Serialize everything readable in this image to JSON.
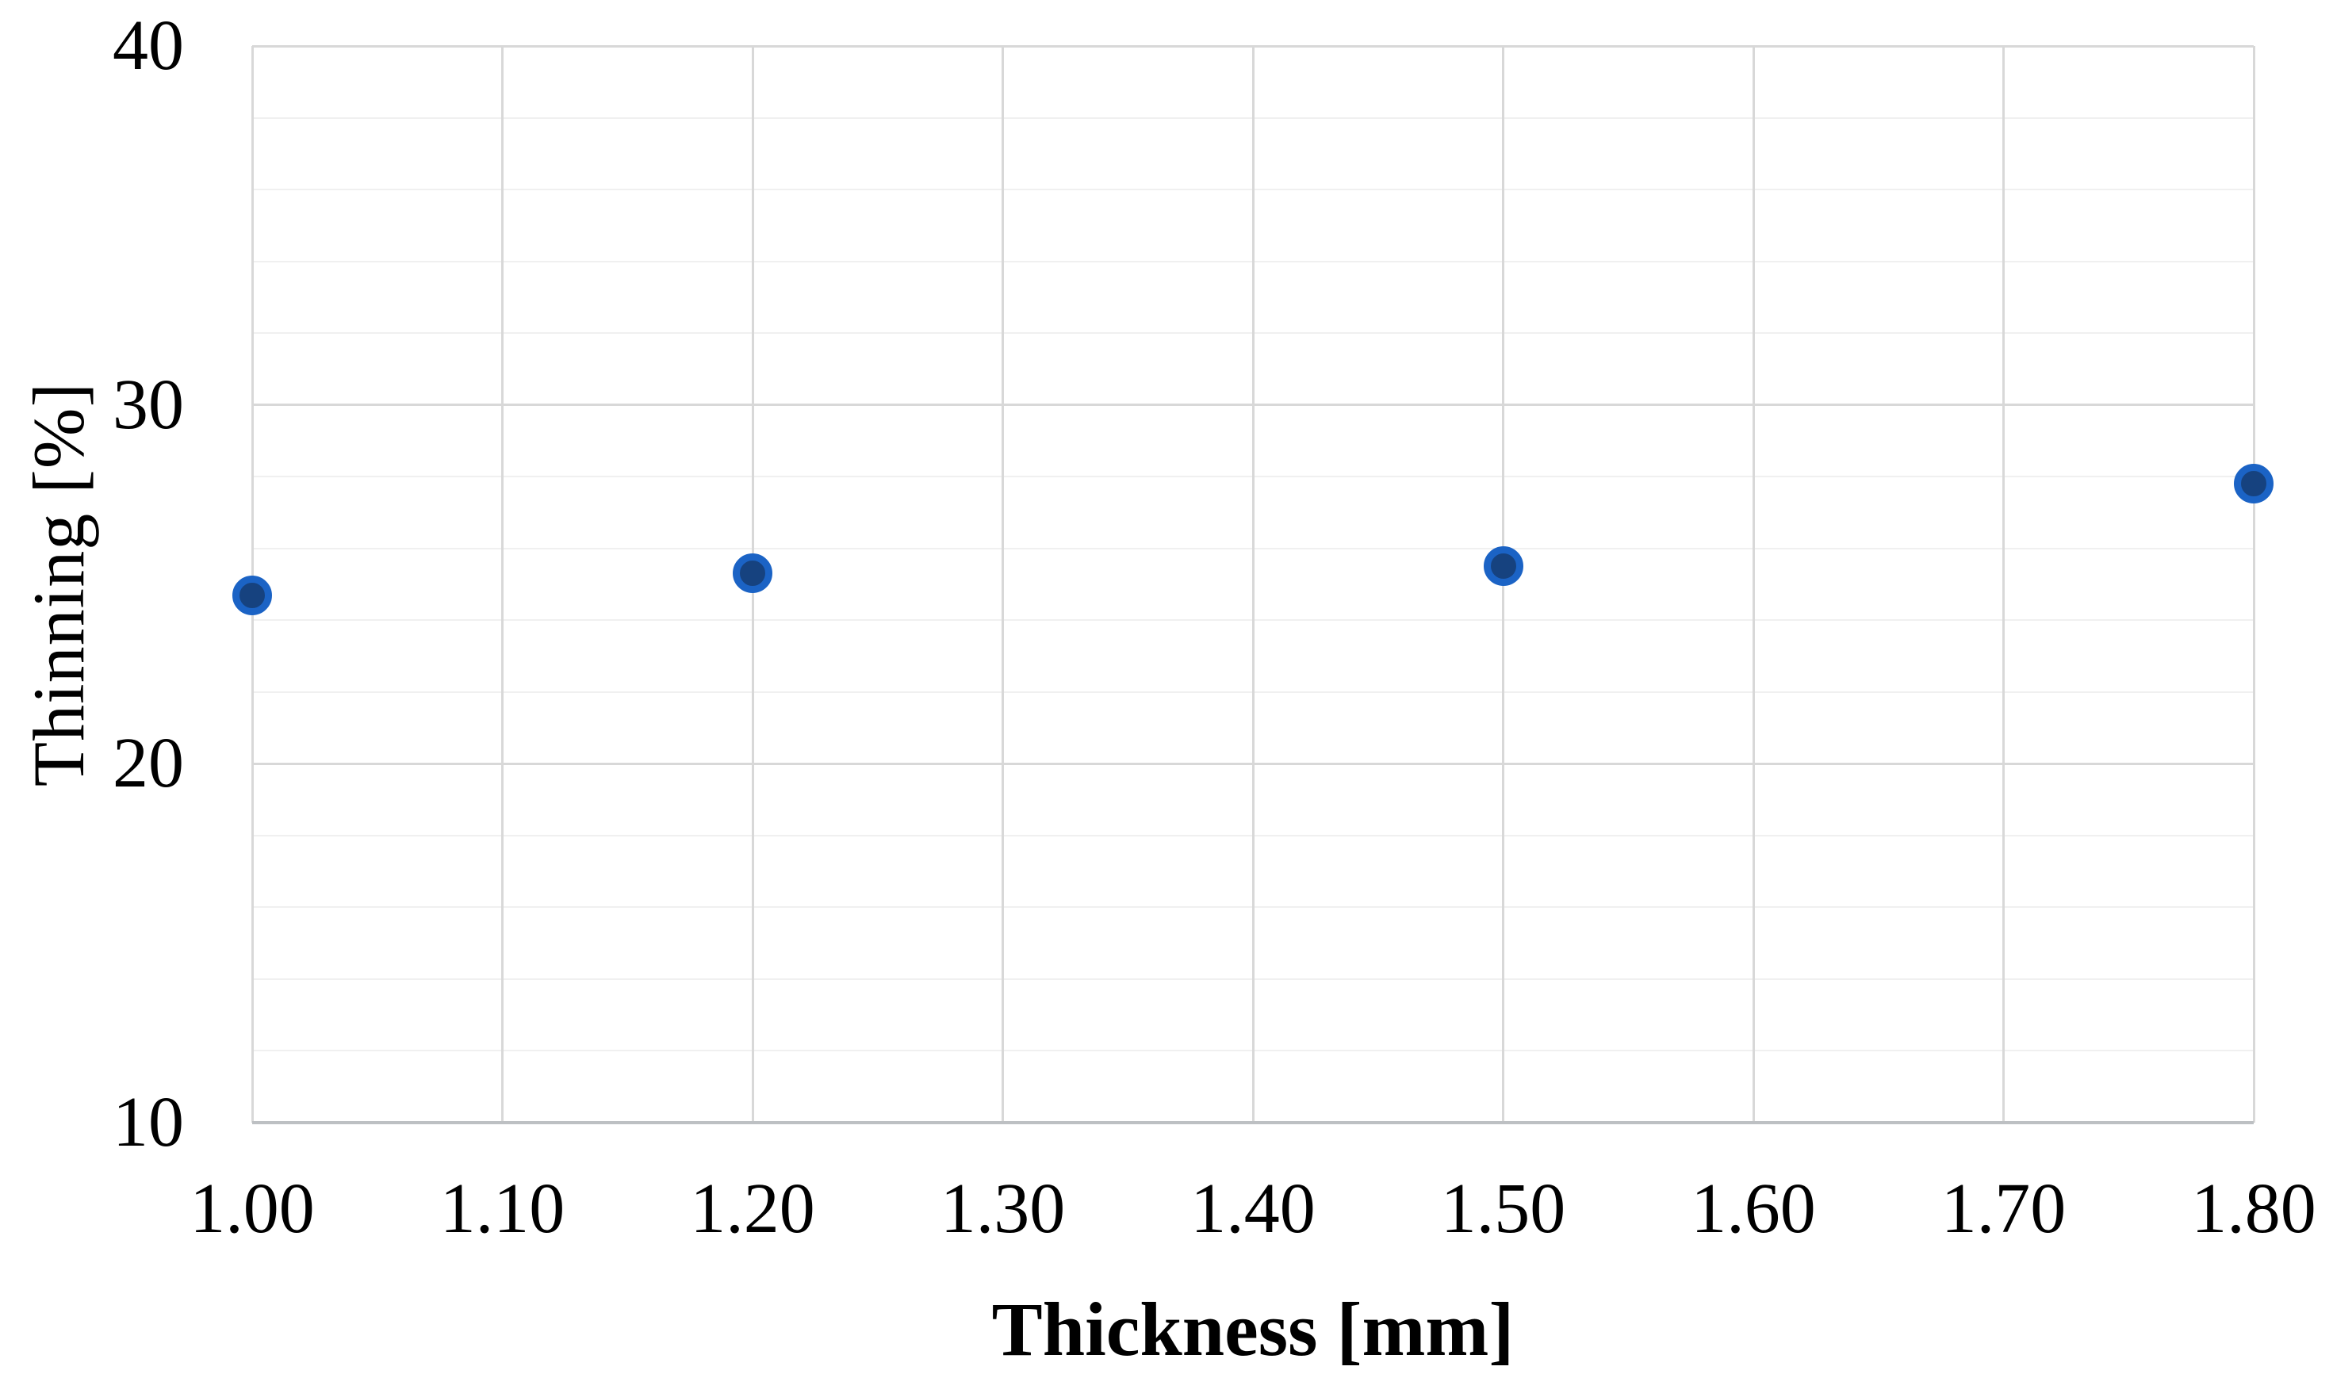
{
  "figure": {
    "background_color": "#ffffff",
    "text_color": "#000000"
  },
  "chart_data": {
    "type": "scatter",
    "title": "",
    "xlabel": "Thickness [mm]",
    "ylabel": "Thinning [%]",
    "xlim": [
      1.0,
      1.8
    ],
    "ylim": [
      10,
      40
    ],
    "x_ticks": [
      {
        "value": 1.0,
        "label": "1.00"
      },
      {
        "value": 1.1,
        "label": "1.10"
      },
      {
        "value": 1.2,
        "label": "1.20"
      },
      {
        "value": 1.3,
        "label": "1.30"
      },
      {
        "value": 1.4,
        "label": "1.40"
      },
      {
        "value": 1.5,
        "label": "1.50"
      },
      {
        "value": 1.6,
        "label": "1.60"
      },
      {
        "value": 1.7,
        "label": "1.70"
      },
      {
        "value": 1.8,
        "label": "1.80"
      }
    ],
    "y_ticks": [
      {
        "value": 10,
        "label": "10"
      },
      {
        "value": 20,
        "label": "20"
      },
      {
        "value": 30,
        "label": "30"
      },
      {
        "value": 40,
        "label": "40"
      }
    ],
    "y_major_step": 10,
    "y_minor_step": 2,
    "grid": {
      "vertical_major": true,
      "horizontal_major": true,
      "horizontal_minor": true,
      "vertical_minor": false
    },
    "legend": false,
    "series": [
      {
        "name": "Thinning",
        "marker": "circle",
        "points": [
          {
            "x": 1.0,
            "y": 24.7
          },
          {
            "x": 1.2,
            "y": 25.3
          },
          {
            "x": 1.5,
            "y": 25.5
          },
          {
            "x": 1.8,
            "y": 27.8
          }
        ]
      }
    ],
    "colors": {
      "marker_fill": "#16427F",
      "marker_border": "#1B63C5",
      "gridline_major": "#D8D8D8",
      "gridline_minor": "#F0F0F0",
      "axis_line": "#BDC0C3"
    }
  }
}
